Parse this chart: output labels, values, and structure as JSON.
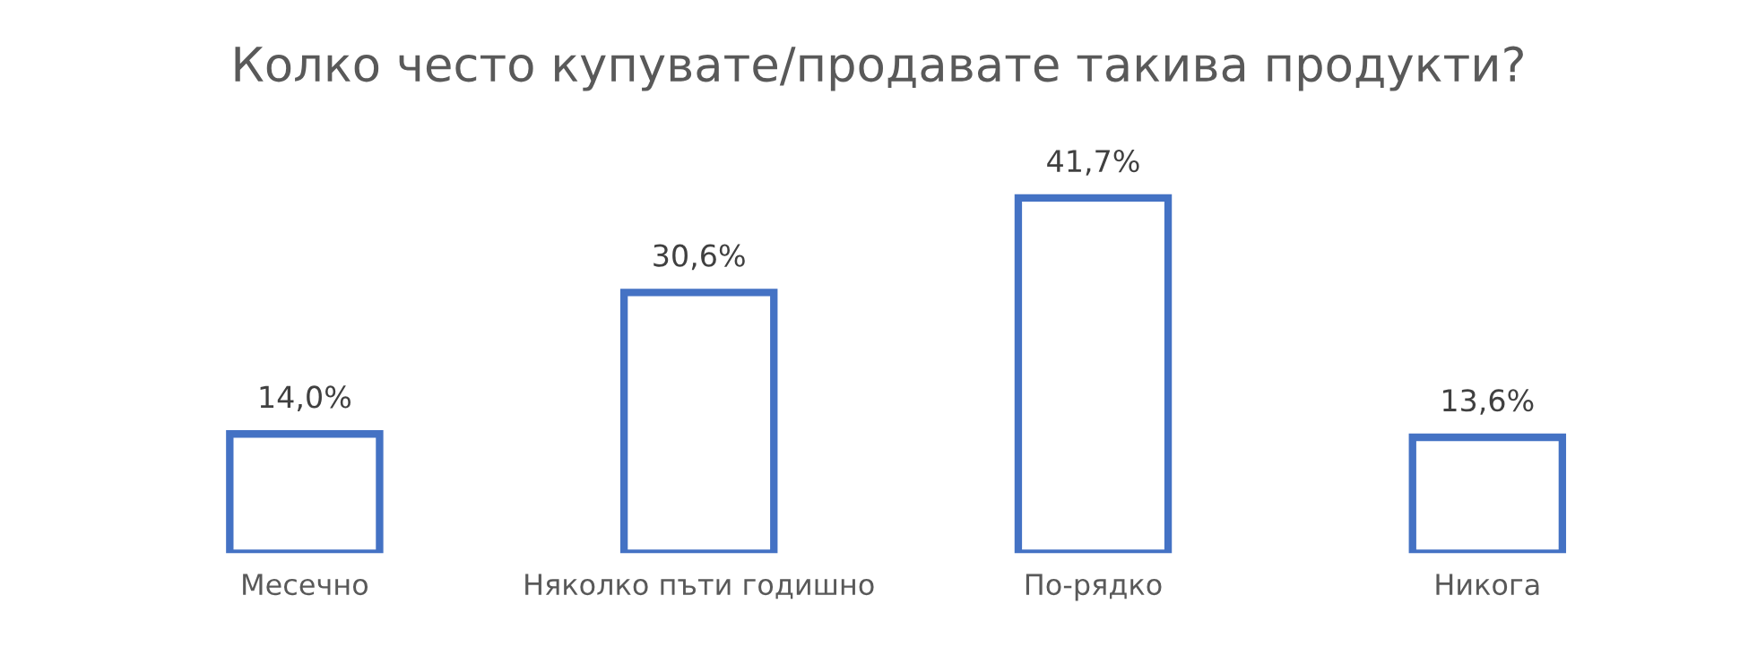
{
  "chart_data": {
    "type": "bar",
    "title": "Колко често купувате/продавате такива продукти?",
    "categories": [
      "Месечно",
      "Няколко пъти годишно",
      "По-рядко",
      "Никога"
    ],
    "values": [
      14.0,
      30.6,
      41.7,
      13.6
    ],
    "value_labels": [
      "14,0%",
      "30,6%",
      "41,7%",
      "13,6%"
    ],
    "color": "#4472c4",
    "grid": false,
    "legend": false
  }
}
